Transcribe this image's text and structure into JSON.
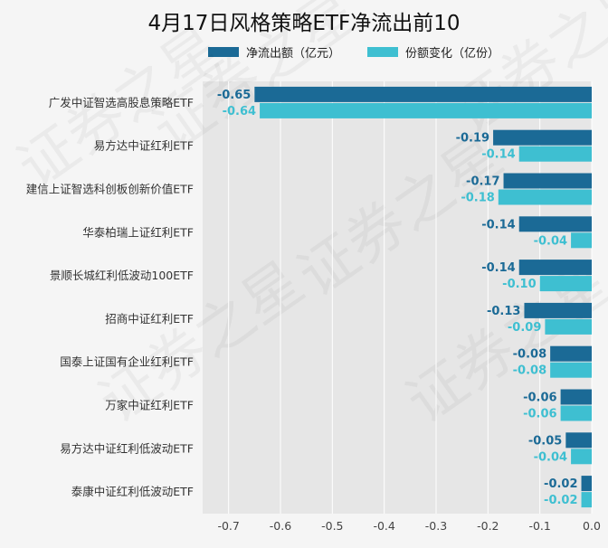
{
  "chart_data": {
    "type": "bar",
    "orientation": "horizontal",
    "title": "4月17日风格策略ETF净流出前10",
    "categories": [
      "广发中证智选高股息策略ETF",
      "易方达中证红利ETF",
      "建信上证智选科创板创新价值ETF",
      "华泰柏瑞上证红利ETF",
      "景顺长城红利低波动100ETF",
      "招商中证红利ETF",
      "国泰上证国有企业红利ETF",
      "万家中证红利ETF",
      "易方达中证红利低波动ETF",
      "泰康中证红利低波动ETF"
    ],
    "series": [
      {
        "name": "净流出额（亿元）",
        "color": "#1b6a96",
        "values": [
          -0.65,
          -0.19,
          -0.17,
          -0.14,
          -0.14,
          -0.13,
          -0.08,
          -0.06,
          -0.05,
          -0.02
        ],
        "labels": [
          "-0.65",
          "-0.19",
          "-0.17",
          "-0.14",
          "-0.14",
          "-0.13",
          "-0.08",
          "-0.06",
          "-0.05",
          "-0.02"
        ]
      },
      {
        "name": "份额变化（亿份）",
        "color": "#3ebfd1",
        "values": [
          -0.64,
          -0.14,
          -0.18,
          -0.04,
          -0.1,
          -0.09,
          -0.08,
          -0.06,
          -0.04,
          -0.02
        ],
        "labels": [
          "-0.64",
          "-0.14",
          "-0.18",
          "-0.04",
          "-0.10",
          "-0.09",
          "-0.08",
          "-0.06",
          "-0.04",
          "-0.02"
        ]
      }
    ],
    "xlim": [
      -0.75,
      0.0
    ],
    "xticks": [
      -0.7,
      -0.6,
      -0.5,
      -0.4,
      -0.3,
      -0.2,
      -0.1,
      0.0
    ],
    "xtick_labels": [
      "-0.7",
      "-0.6",
      "-0.5",
      "-0.4",
      "-0.3",
      "-0.2",
      "-0.1",
      "0.0"
    ],
    "grid": true,
    "legend_position": "top",
    "plot_background": "#e6e6e6",
    "watermark": "证券之星"
  }
}
